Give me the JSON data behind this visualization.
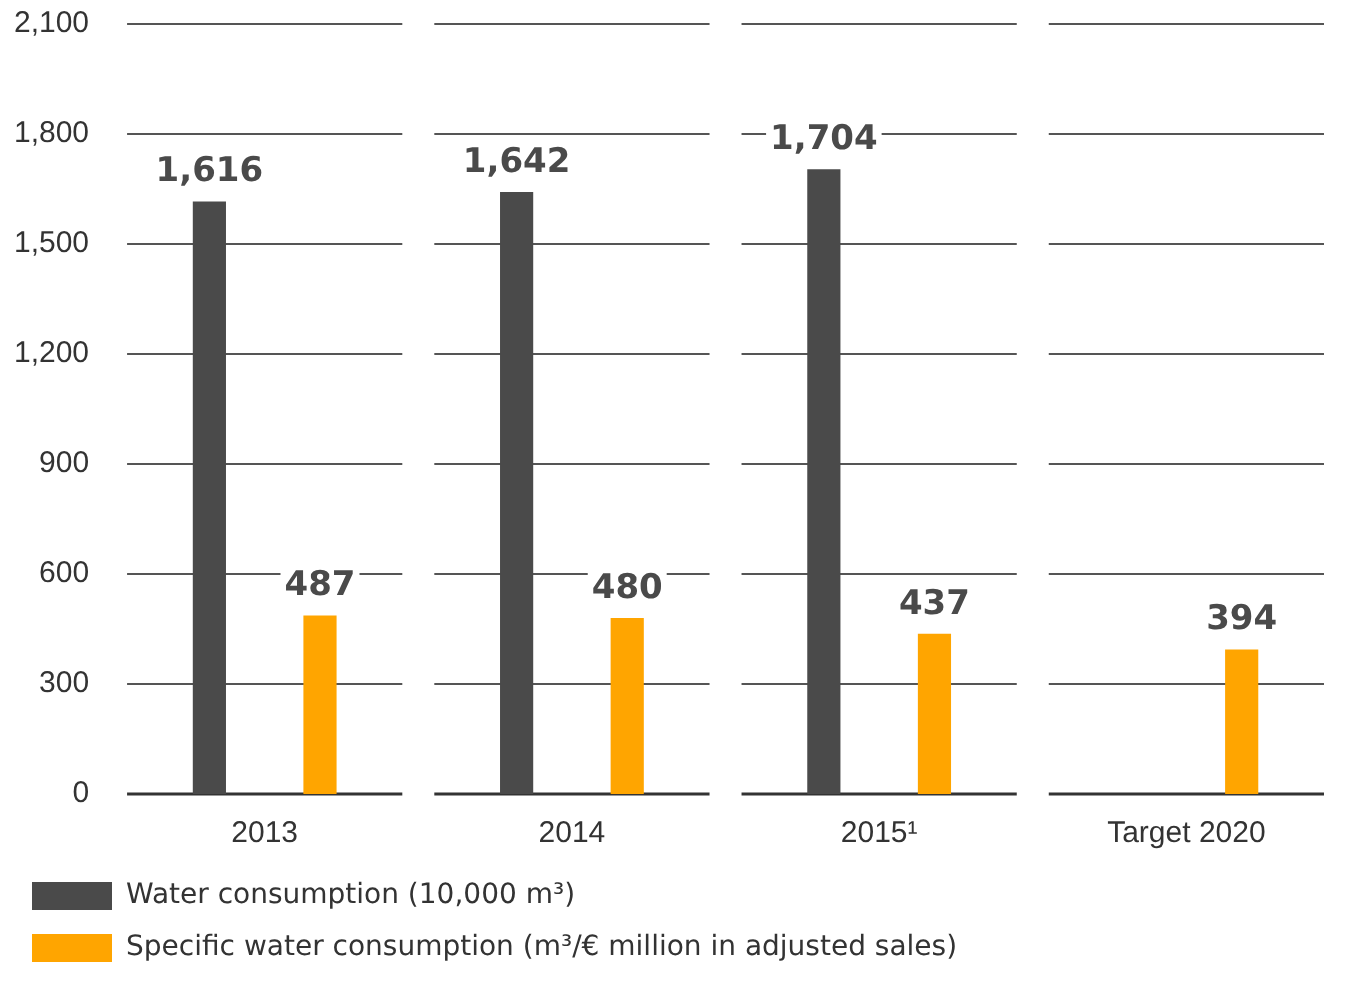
{
  "chart_data": {
    "type": "bar",
    "categories": [
      "2013",
      "2014",
      "2015¹",
      "Target 2020"
    ],
    "series": [
      {
        "name": "Water consumption (10,000 m³)",
        "color": "#4a4a4a",
        "values": [
          1616,
          1642,
          1704,
          null
        ],
        "value_labels": [
          "1,616",
          "1,642",
          "1,704",
          null
        ]
      },
      {
        "name": "Specific water consumption (m³/€ million in adjusted sales)",
        "color": "#ffa500",
        "values": [
          487,
          480,
          437,
          394
        ],
        "value_labels": [
          "487",
          "480",
          "437",
          "394"
        ]
      }
    ],
    "ylim": [
      0,
      2100
    ],
    "yticks": [
      0,
      {
        "value": 300,
        "label": "300"
      },
      {
        "value": 600,
        "label": "600"
      },
      {
        "value": 900,
        "label": "900"
      },
      {
        "value": 1200,
        "label": "1,200"
      },
      {
        "value": 1500,
        "label": "1,500"
      },
      {
        "value": 1800,
        "label": "1,800"
      },
      {
        "value": 2100,
        "label": "2,100"
      }
    ],
    "grid": "y",
    "legend": "bottom"
  }
}
